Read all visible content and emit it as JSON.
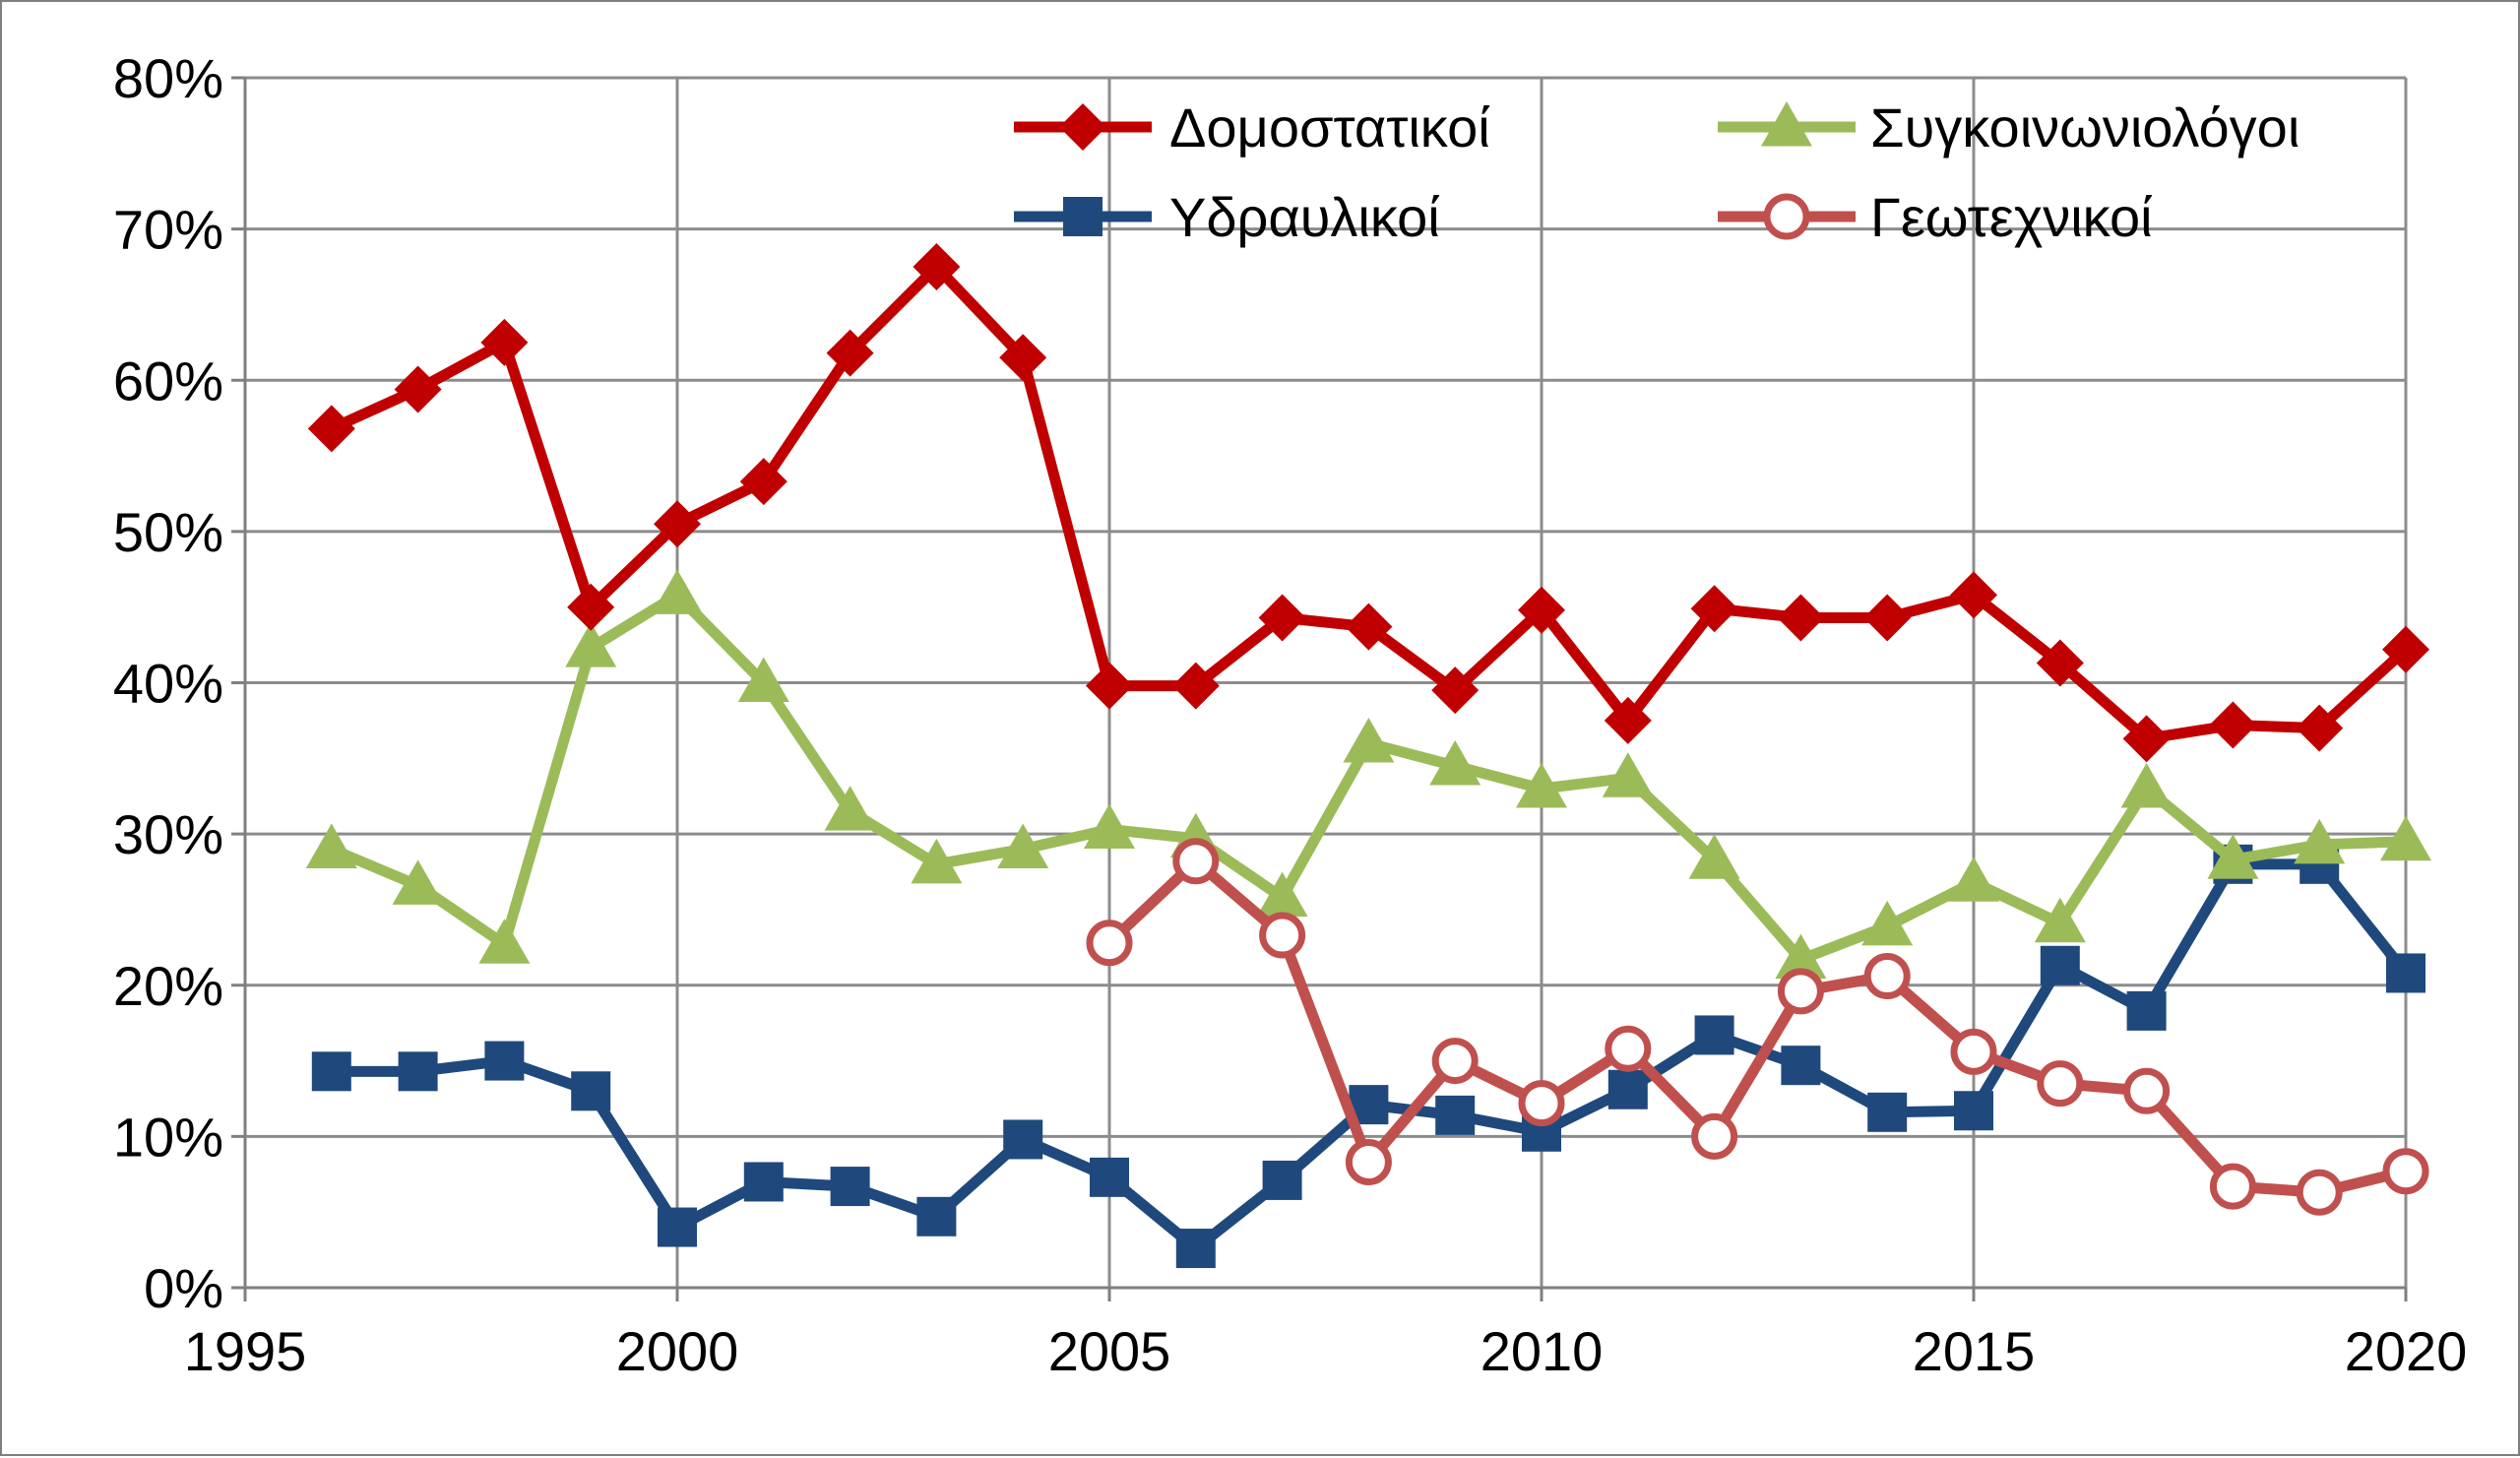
{
  "chart_data": {
    "type": "line",
    "title": "",
    "xlabel": "",
    "ylabel": "",
    "xlim": [
      1995,
      2020
    ],
    "ylim": [
      0,
      80
    ],
    "x_ticks": [
      1995,
      2000,
      2005,
      2010,
      2015,
      2020
    ],
    "x_tick_labels": [
      "1995",
      "2000",
      "2005",
      "2010",
      "2015",
      "2020"
    ],
    "y_ticks": [
      0,
      10,
      20,
      30,
      40,
      50,
      60,
      70,
      80
    ],
    "y_tick_labels": [
      "0%",
      "10%",
      "20%",
      "30%",
      "40%",
      "50%",
      "60%",
      "70%",
      "80%"
    ],
    "grid": true,
    "legend_position": "top-right",
    "series": [
      {
        "name": "Δομοστατικοί",
        "color": "#C00000",
        "marker": "diamond",
        "x": [
          1996,
          1997,
          1998,
          1999,
          2000,
          2001,
          2002,
          2003,
          2004,
          2005,
          2006,
          2007,
          2008,
          2009,
          2010,
          2011,
          2012,
          2013,
          2014,
          2015,
          2016,
          2017,
          2018,
          2019,
          2020
        ],
        "values": [
          56.8,
          59.4,
          62.5,
          45,
          50.5,
          53.3,
          61.8,
          67.5,
          61.5,
          39.8,
          39.8,
          44.3,
          43.7,
          39.5,
          44.8,
          37.5,
          44.9,
          44.3,
          44.3,
          45.8,
          41.3,
          36.3,
          37.2,
          37,
          42.2
        ]
      },
      {
        "name": "Συγκοινωνιολόγοι",
        "color": "#9BBB59",
        "marker": "triangle",
        "x": [
          1996,
          1997,
          1998,
          1999,
          2000,
          2001,
          2002,
          2003,
          2004,
          2005,
          2006,
          2007,
          2008,
          2009,
          2010,
          2011,
          2012,
          2013,
          2014,
          2015,
          2016,
          2017,
          2018,
          2019,
          2020
        ],
        "values": [
          29,
          26.6,
          22.7,
          42.3,
          45.8,
          40,
          31.5,
          28,
          29,
          30.3,
          29.7,
          25.8,
          36,
          34.5,
          33,
          33.7,
          28.3,
          21.7,
          23.9,
          26.8,
          24.1,
          33,
          28.3,
          29.3,
          29.5
        ]
      },
      {
        "name": "Υδραυλικοί",
        "color": "#1F497D",
        "marker": "square",
        "x": [
          1996,
          1997,
          1998,
          1999,
          2000,
          2001,
          2002,
          2003,
          2004,
          2005,
          2006,
          2007,
          2008,
          2009,
          2010,
          2011,
          2012,
          2013,
          2014,
          2015,
          2016,
          2017,
          2018,
          2019,
          2020
        ],
        "values": [
          14.3,
          14.3,
          15,
          13,
          4,
          7,
          6.7,
          4.7,
          9.8,
          7.3,
          2.6,
          7.1,
          12.1,
          11.4,
          10.3,
          13.1,
          16.7,
          14.7,
          11.6,
          11.7,
          21.3,
          18.3,
          28,
          28,
          20.8
        ]
      },
      {
        "name": "Γεωτεχνικοί",
        "color": "#C0504D",
        "marker": "circle-open",
        "x": [
          2005,
          2006,
          2007,
          2008,
          2009,
          2010,
          2011,
          2012,
          2013,
          2014,
          2015,
          2016,
          2017,
          2018,
          2019,
          2020
        ],
        "values": [
          22.8,
          28.2,
          23.3,
          8.3,
          15,
          12.2,
          15.8,
          10,
          19.6,
          20.6,
          15.6,
          13.5,
          13,
          6.7,
          6.3,
          7.7
        ]
      }
    ]
  }
}
